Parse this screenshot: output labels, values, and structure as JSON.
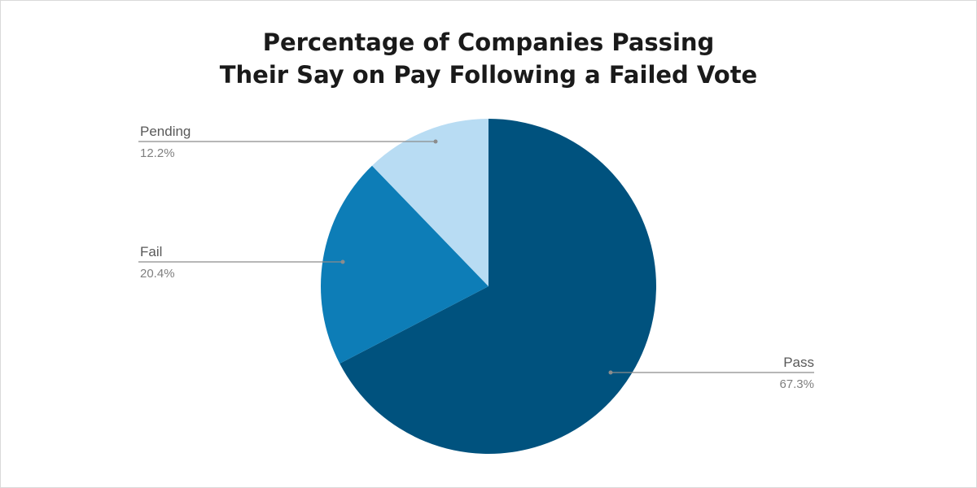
{
  "chart_data": {
    "type": "pie",
    "title_lines": [
      "Percentage of Companies Passing",
      "Their Say on Pay Following a Failed Vote"
    ],
    "slices": [
      {
        "label": "Pass",
        "value": 67.3,
        "value_label": "67.3%",
        "color": "#00527e"
      },
      {
        "label": "Fail",
        "value": 20.4,
        "value_label": "20.4%",
        "color": "#0d7db7"
      },
      {
        "label": "Pending",
        "value": 12.2,
        "value_label": "12.2%",
        "color": "#b8dcf3"
      }
    ],
    "start_angle": "12 o'clock",
    "direction": "clockwise",
    "legend": "none",
    "labels": "outside with leader lines"
  }
}
